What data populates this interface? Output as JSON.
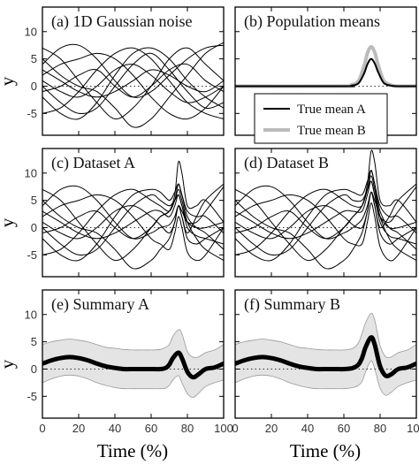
{
  "figure": {
    "ylabel": "y",
    "xlabel": "Time (%)"
  },
  "chart_data": [
    {
      "id": "a",
      "type": "line",
      "title": "(a) 1D Gaussian noise",
      "xlim": [
        0,
        100
      ],
      "ylim": [
        -9,
        14.5
      ],
      "xticks": [
        0,
        20,
        40,
        60,
        80,
        100
      ],
      "yticks": [
        -5,
        0,
        5,
        10
      ],
      "zero_line": "dotted",
      "x": [
        0,
        10,
        20,
        30,
        40,
        50,
        60,
        70,
        80,
        90,
        100
      ],
      "series": [
        {
          "values": [
            7.0,
            5.0,
            1.0,
            -3.0,
            -6.0,
            -4.0,
            0.0,
            5.0,
            7.0,
            4.0,
            1.0
          ]
        },
        {
          "values": [
            4.0,
            7.0,
            7.5,
            5.0,
            1.0,
            -2.0,
            -1.0,
            2.0,
            5.0,
            7.0,
            7.5
          ]
        },
        {
          "values": [
            0.0,
            -3.0,
            -5.0,
            -4.0,
            0.0,
            4.0,
            6.0,
            3.0,
            -1.0,
            -4.0,
            -3.0
          ]
        },
        {
          "values": [
            -2.0,
            -5.0,
            -6.0,
            -3.0,
            2.0,
            6.0,
            7.0,
            5.0,
            1.0,
            -2.0,
            -4.0
          ]
        },
        {
          "values": [
            2.0,
            4.0,
            5.0,
            6.0,
            5.0,
            2.0,
            -2.0,
            -5.0,
            -6.0,
            -4.0,
            0.0
          ]
        },
        {
          "values": [
            -5.0,
            -4.0,
            -1.0,
            3.0,
            6.0,
            7.0,
            5.0,
            1.0,
            -3.0,
            -5.0,
            -6.0
          ]
        },
        {
          "values": [
            5.0,
            2.0,
            0.0,
            -1.0,
            -4.0,
            -7.5,
            -6.0,
            -2.0,
            2.0,
            6.0,
            8.0
          ]
        },
        {
          "values": [
            -1.0,
            0.0,
            2.0,
            3.0,
            0.0,
            -2.0,
            0.0,
            3.0,
            4.0,
            1.0,
            -1.0
          ]
        },
        {
          "values": [
            1.0,
            -1.0,
            -2.0,
            0.0,
            3.0,
            4.0,
            2.0,
            -1.0,
            -3.0,
            -2.0,
            0.0
          ]
        },
        {
          "values": [
            3.0,
            1.0,
            -1.0,
            -2.0,
            -1.0,
            1.0,
            3.0,
            2.0,
            0.0,
            -1.0,
            1.0
          ]
        }
      ]
    },
    {
      "id": "b",
      "type": "line",
      "title": "(b) Population means",
      "xlim": [
        0,
        100
      ],
      "ylim": [
        -9,
        14.5
      ],
      "xticks": [
        0,
        20,
        40,
        60,
        80,
        100
      ],
      "yticks": [
        -5,
        0,
        5,
        10
      ],
      "zero_line": "dotted",
      "x": [
        0,
        60,
        64,
        68,
        71,
        73,
        75,
        77,
        79,
        82,
        86,
        90,
        100
      ],
      "series": [
        {
          "name": "True mean A",
          "color": "#000000",
          "values": [
            0,
            0,
            0.1,
            0.5,
            2.2,
            4.0,
            5.0,
            4.2,
            2.5,
            0.6,
            0.1,
            0,
            0
          ]
        },
        {
          "name": "True mean B",
          "color": "#bbbbbb",
          "values": [
            0,
            0,
            0.2,
            0.9,
            3.5,
            6.0,
            7.2,
            6.2,
            3.8,
            1.0,
            0.2,
            0,
            0
          ]
        }
      ],
      "legend": "bottom-left",
      "legend_entries": [
        "True mean A",
        "True mean B"
      ]
    },
    {
      "id": "c",
      "type": "line",
      "title": "(c) Dataset A",
      "xlim": [
        0,
        100
      ],
      "ylim": [
        -9,
        14.5
      ],
      "xticks": [
        0,
        20,
        40,
        60,
        80,
        100
      ],
      "yticks": [
        -5,
        0,
        5,
        10
      ],
      "zero_line": "dotted",
      "x": [
        0,
        10,
        20,
        30,
        40,
        50,
        60,
        65,
        70,
        73,
        75,
        77,
        80,
        85,
        90,
        100
      ],
      "series": [
        {
          "values": [
            7.0,
            5.0,
            1.0,
            -3.0,
            -6.0,
            -4.0,
            0.0,
            2.0,
            3.0,
            6.0,
            12.0,
            10.0,
            4.0,
            4.0,
            5.0,
            1.0
          ]
        },
        {
          "values": [
            4.0,
            7.0,
            7.5,
            5.0,
            1.0,
            -2.0,
            -1.0,
            0.0,
            0.5,
            2.0,
            4.0,
            3.0,
            1.0,
            1.0,
            3.0,
            7.5
          ]
        },
        {
          "values": [
            0.0,
            -3.0,
            -5.0,
            -4.0,
            0.0,
            4.0,
            6.0,
            5.0,
            4.0,
            5.0,
            6.0,
            4.0,
            0.0,
            -1.5,
            -2.0,
            -3.0
          ]
        },
        {
          "values": [
            -2.0,
            -5.0,
            -6.0,
            -3.0,
            2.0,
            6.0,
            7.0,
            6.5,
            5.0,
            6.5,
            8.0,
            6.0,
            2.0,
            0.0,
            -1.0,
            -4.0
          ]
        },
        {
          "values": [
            2.0,
            4.0,
            5.0,
            6.0,
            5.0,
            2.0,
            -2.0,
            -3.0,
            -4.0,
            -1.0,
            2.0,
            0.0,
            -4.5,
            -6.0,
            -5.0,
            0.0
          ]
        },
        {
          "values": [
            -5.0,
            -4.0,
            -1.0,
            3.0,
            6.0,
            7.0,
            5.0,
            4.0,
            3.0,
            5.0,
            7.0,
            5.0,
            1.0,
            -2.0,
            -4.0,
            -6.0
          ]
        },
        {
          "values": [
            5.0,
            2.0,
            0.0,
            -1.0,
            -4.0,
            -7.5,
            -6.0,
            -4.0,
            -2.0,
            1.0,
            4.0,
            2.0,
            -1.0,
            2.0,
            5.0,
            8.0
          ]
        },
        {
          "values": [
            -1.0,
            0.0,
            2.0,
            3.0,
            0.0,
            -2.0,
            0.0,
            2.0,
            3.0,
            5.0,
            8.0,
            6.0,
            3.0,
            2.0,
            2.0,
            -1.0
          ]
        },
        {
          "values": [
            1.0,
            -1.0,
            -2.0,
            0.0,
            3.0,
            4.0,
            2.0,
            0.5,
            -1.0,
            1.0,
            4.0,
            2.0,
            -2.0,
            -3.0,
            -2.0,
            0.0
          ]
        },
        {
          "values": [
            3.0,
            1.0,
            -1.0,
            -2.0,
            -1.0,
            1.0,
            3.0,
            3.0,
            2.0,
            4.0,
            6.0,
            4.0,
            1.0,
            0.0,
            0.0,
            1.0
          ]
        }
      ]
    },
    {
      "id": "d",
      "type": "line",
      "title": "(d) Dataset B",
      "xlim": [
        0,
        100
      ],
      "ylim": [
        -9,
        14.5
      ],
      "xticks": [
        0,
        20,
        40,
        60,
        80,
        100
      ],
      "yticks": [
        -5,
        0,
        5,
        10
      ],
      "zero_line": "dotted",
      "x": [
        0,
        10,
        20,
        30,
        40,
        50,
        60,
        65,
        70,
        73,
        75,
        77,
        80,
        85,
        90,
        100
      ],
      "series": [
        {
          "values": [
            7.0,
            5.0,
            1.0,
            -3.0,
            -6.0,
            -4.0,
            0.0,
            2.0,
            4.0,
            8.0,
            14.0,
            12.0,
            5.0,
            4.0,
            5.0,
            1.0
          ]
        },
        {
          "values": [
            4.0,
            7.0,
            7.5,
            5.0,
            1.0,
            -2.0,
            -1.0,
            0.0,
            1.5,
            4.0,
            6.5,
            5.0,
            2.0,
            1.0,
            3.0,
            7.5
          ]
        },
        {
          "values": [
            0.0,
            -3.0,
            -5.0,
            -4.0,
            0.0,
            4.0,
            6.0,
            5.0,
            5.0,
            7.0,
            8.5,
            6.0,
            1.0,
            -1.5,
            -2.0,
            -3.0
          ]
        },
        {
          "values": [
            -2.0,
            -5.0,
            -6.0,
            -3.0,
            2.0,
            6.0,
            7.0,
            6.5,
            6.0,
            8.5,
            10.5,
            8.0,
            3.0,
            0.0,
            -1.0,
            -4.0
          ]
        },
        {
          "values": [
            2.0,
            4.0,
            5.0,
            6.0,
            5.0,
            2.0,
            -2.0,
            -3.0,
            -3.0,
            1.0,
            4.5,
            2.0,
            -3.5,
            -6.0,
            -5.0,
            0.0
          ]
        },
        {
          "values": [
            -5.0,
            -4.0,
            -1.0,
            3.0,
            6.0,
            7.0,
            5.0,
            4.0,
            4.0,
            7.0,
            9.5,
            7.0,
            2.0,
            -2.0,
            -4.0,
            -6.0
          ]
        },
        {
          "values": [
            5.0,
            2.0,
            0.0,
            -1.0,
            -4.0,
            -7.5,
            -6.0,
            -4.0,
            -1.0,
            3.0,
            6.5,
            4.0,
            0.0,
            2.0,
            5.0,
            8.0
          ]
        },
        {
          "values": [
            -1.0,
            0.0,
            2.0,
            3.0,
            0.0,
            -2.0,
            0.0,
            2.0,
            4.0,
            7.0,
            10.5,
            8.0,
            4.0,
            2.0,
            2.0,
            -1.0
          ]
        },
        {
          "values": [
            1.0,
            -1.0,
            -2.0,
            0.0,
            3.0,
            4.0,
            2.0,
            0.5,
            0.0,
            3.0,
            6.5,
            4.0,
            -1.0,
            -3.0,
            -2.0,
            0.0
          ]
        },
        {
          "values": [
            3.0,
            1.0,
            -1.0,
            -2.0,
            -1.0,
            1.0,
            3.0,
            3.0,
            3.0,
            6.0,
            8.5,
            6.0,
            2.0,
            0.0,
            0.0,
            1.0
          ]
        }
      ]
    },
    {
      "id": "e",
      "type": "area",
      "title": "(e) Summary A",
      "xlim": [
        0,
        100
      ],
      "ylim": [
        -9,
        14.5
      ],
      "xticks": [
        0,
        20,
        40,
        60,
        80,
        100
      ],
      "yticks": [
        -5,
        0,
        5,
        10
      ],
      "zero_line": "dotted",
      "x": [
        0,
        5,
        10,
        15,
        20,
        25,
        30,
        35,
        40,
        45,
        50,
        55,
        60,
        65,
        68,
        70,
        72,
        75,
        77,
        80,
        83,
        86,
        90,
        95,
        100
      ],
      "series": [
        {
          "name": "mean",
          "values": [
            1.0,
            1.6,
            2.0,
            2.2,
            2.0,
            1.6,
            1.0,
            0.5,
            0.2,
            0.0,
            0.0,
            0.0,
            0.0,
            0.0,
            0.2,
            0.8,
            2.0,
            3.0,
            2.0,
            -0.5,
            -1.5,
            -1.0,
            0.0,
            0.3,
            1.0
          ]
        },
        {
          "name": "upper",
          "values": [
            4.5,
            5.0,
            5.3,
            5.5,
            5.3,
            5.0,
            4.5,
            4.0,
            3.8,
            3.6,
            3.5,
            3.5,
            3.5,
            3.6,
            4.0,
            4.5,
            6.0,
            7.2,
            6.5,
            3.2,
            2.2,
            2.2,
            3.0,
            3.5,
            4.5
          ]
        },
        {
          "name": "lower",
          "values": [
            -2.5,
            -1.8,
            -1.3,
            -1.1,
            -1.3,
            -1.8,
            -2.5,
            -3.0,
            -3.4,
            -3.6,
            -3.6,
            -3.6,
            -3.6,
            -3.6,
            -3.5,
            -3.0,
            -2.0,
            -1.2,
            -2.5,
            -4.5,
            -5.2,
            -4.5,
            -3.2,
            -2.5,
            -2.0
          ]
        }
      ]
    },
    {
      "id": "f",
      "type": "area",
      "title": "(f) Summary B",
      "xlim": [
        0,
        100
      ],
      "ylim": [
        -9,
        14.5
      ],
      "xticks": [
        0,
        20,
        40,
        60,
        80,
        100
      ],
      "yticks": [
        -5,
        0,
        5,
        10
      ],
      "zero_line": "dotted",
      "x": [
        0,
        5,
        10,
        15,
        20,
        25,
        30,
        35,
        40,
        45,
        50,
        55,
        60,
        65,
        68,
        70,
        72,
        75,
        77,
        80,
        83,
        86,
        90,
        95,
        100
      ],
      "series": [
        {
          "name": "mean",
          "values": [
            1.0,
            1.6,
            2.0,
            2.2,
            2.0,
            1.6,
            1.0,
            0.5,
            0.2,
            0.0,
            0.0,
            0.0,
            0.0,
            0.2,
            0.8,
            2.0,
            4.0,
            5.8,
            4.5,
            0.5,
            -1.2,
            -1.0,
            0.0,
            0.3,
            1.0
          ]
        },
        {
          "name": "upper",
          "values": [
            4.5,
            5.0,
            5.3,
            5.5,
            5.3,
            5.0,
            4.5,
            4.0,
            3.8,
            3.6,
            3.5,
            3.5,
            3.5,
            3.8,
            4.8,
            6.5,
            8.5,
            10.2,
            9.0,
            4.3,
            2.3,
            2.2,
            3.0,
            3.5,
            4.5
          ]
        },
        {
          "name": "lower",
          "values": [
            -2.5,
            -1.8,
            -1.3,
            -1.1,
            -1.3,
            -1.8,
            -2.5,
            -3.0,
            -3.4,
            -3.6,
            -3.6,
            -3.6,
            -3.6,
            -3.4,
            -3.0,
            -2.3,
            -0.5,
            1.5,
            0.0,
            -3.5,
            -4.8,
            -4.3,
            -3.2,
            -2.5,
            -2.0
          ]
        }
      ]
    }
  ]
}
